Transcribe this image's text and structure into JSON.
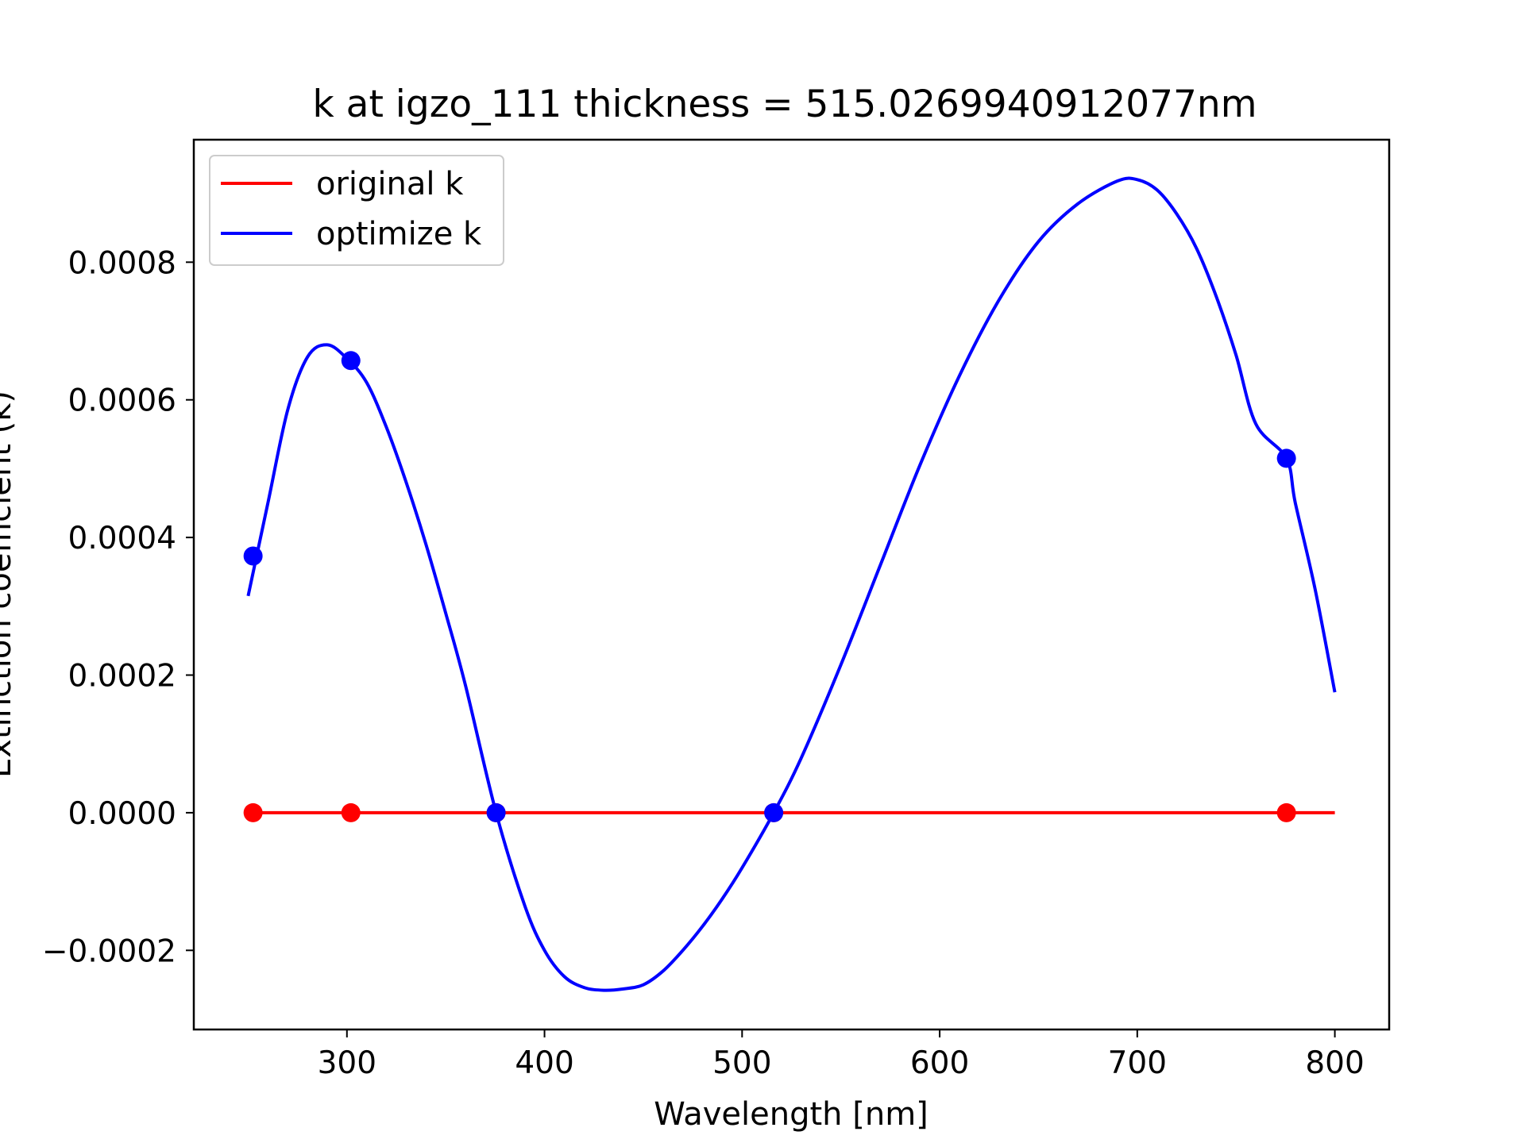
{
  "chart_data": {
    "type": "line",
    "title": "k at igzo_111 thickness = 515.0269940912077nm",
    "xlabel": "Wavelength [nm]",
    "ylabel": "Extinction coefficient (k)",
    "xlim": [
      222.5,
      827.5
    ],
    "ylim": [
      -0.000315,
      0.000978
    ],
    "xticks": [
      300,
      400,
      500,
      600,
      700,
      800
    ],
    "xtick_labels": [
      "300",
      "400",
      "500",
      "600",
      "700",
      "800"
    ],
    "yticks": [
      -0.0002,
      0.0,
      0.0002,
      0.0004,
      0.0006,
      0.0008
    ],
    "ytick_labels": [
      "−0.0002",
      "0.0000",
      "0.0002",
      "0.0004",
      "0.0006",
      "0.0008"
    ],
    "grid": false,
    "legend_position": "upper-left",
    "series": [
      {
        "name": "original k",
        "color": "#ff0000",
        "x": [
          250,
          800
        ],
        "y": [
          0.0,
          0.0
        ],
        "markers": {
          "x": [
            252.5,
            302.0,
            375.5,
            516.0,
            775.5
          ],
          "y": [
            0.0,
            0.0,
            0.0,
            0.0,
            0.0
          ]
        }
      },
      {
        "name": "optimize k",
        "color": "#0000ff",
        "x": [
          250,
          260,
          270,
          280,
          290,
          300,
          310,
          320,
          330,
          340,
          350,
          360,
          375.5,
          390,
          400,
          410,
          420,
          430,
          440,
          450,
          460,
          470,
          480,
          490,
          500,
          516,
          530,
          550,
          570,
          590,
          610,
          630,
          650,
          670,
          690,
          700,
          710,
          720,
          730,
          740,
          750,
          760,
          775.5,
          780,
          790,
          800
        ],
        "y": [
          0.000315,
          0.00045,
          0.000585,
          0.000662,
          0.00068,
          0.00066,
          0.000625,
          0.00056,
          0.00048,
          0.00039,
          0.00029,
          0.000185,
          0.0,
          -0.000135,
          -0.0002,
          -0.000238,
          -0.000254,
          -0.000258,
          -0.000256,
          -0.00025,
          -0.00023,
          -0.0002,
          -0.000165,
          -0.000125,
          -8e-05,
          0.0,
          8e-05,
          0.000215,
          0.00036,
          0.000505,
          0.000635,
          0.000745,
          0.00083,
          0.000885,
          0.000918,
          0.00092,
          0.000905,
          0.00087,
          0.00082,
          0.00075,
          0.000665,
          0.000565,
          0.000515,
          0.00045,
          0.000325,
          0.000175
        ],
        "markers": {
          "x": [
            252.5,
            302.0,
            375.5,
            516.0,
            775.5
          ],
          "y": [
            0.000373,
            0.000657,
            0.0,
            0.0,
            0.000515
          ]
        }
      }
    ]
  }
}
